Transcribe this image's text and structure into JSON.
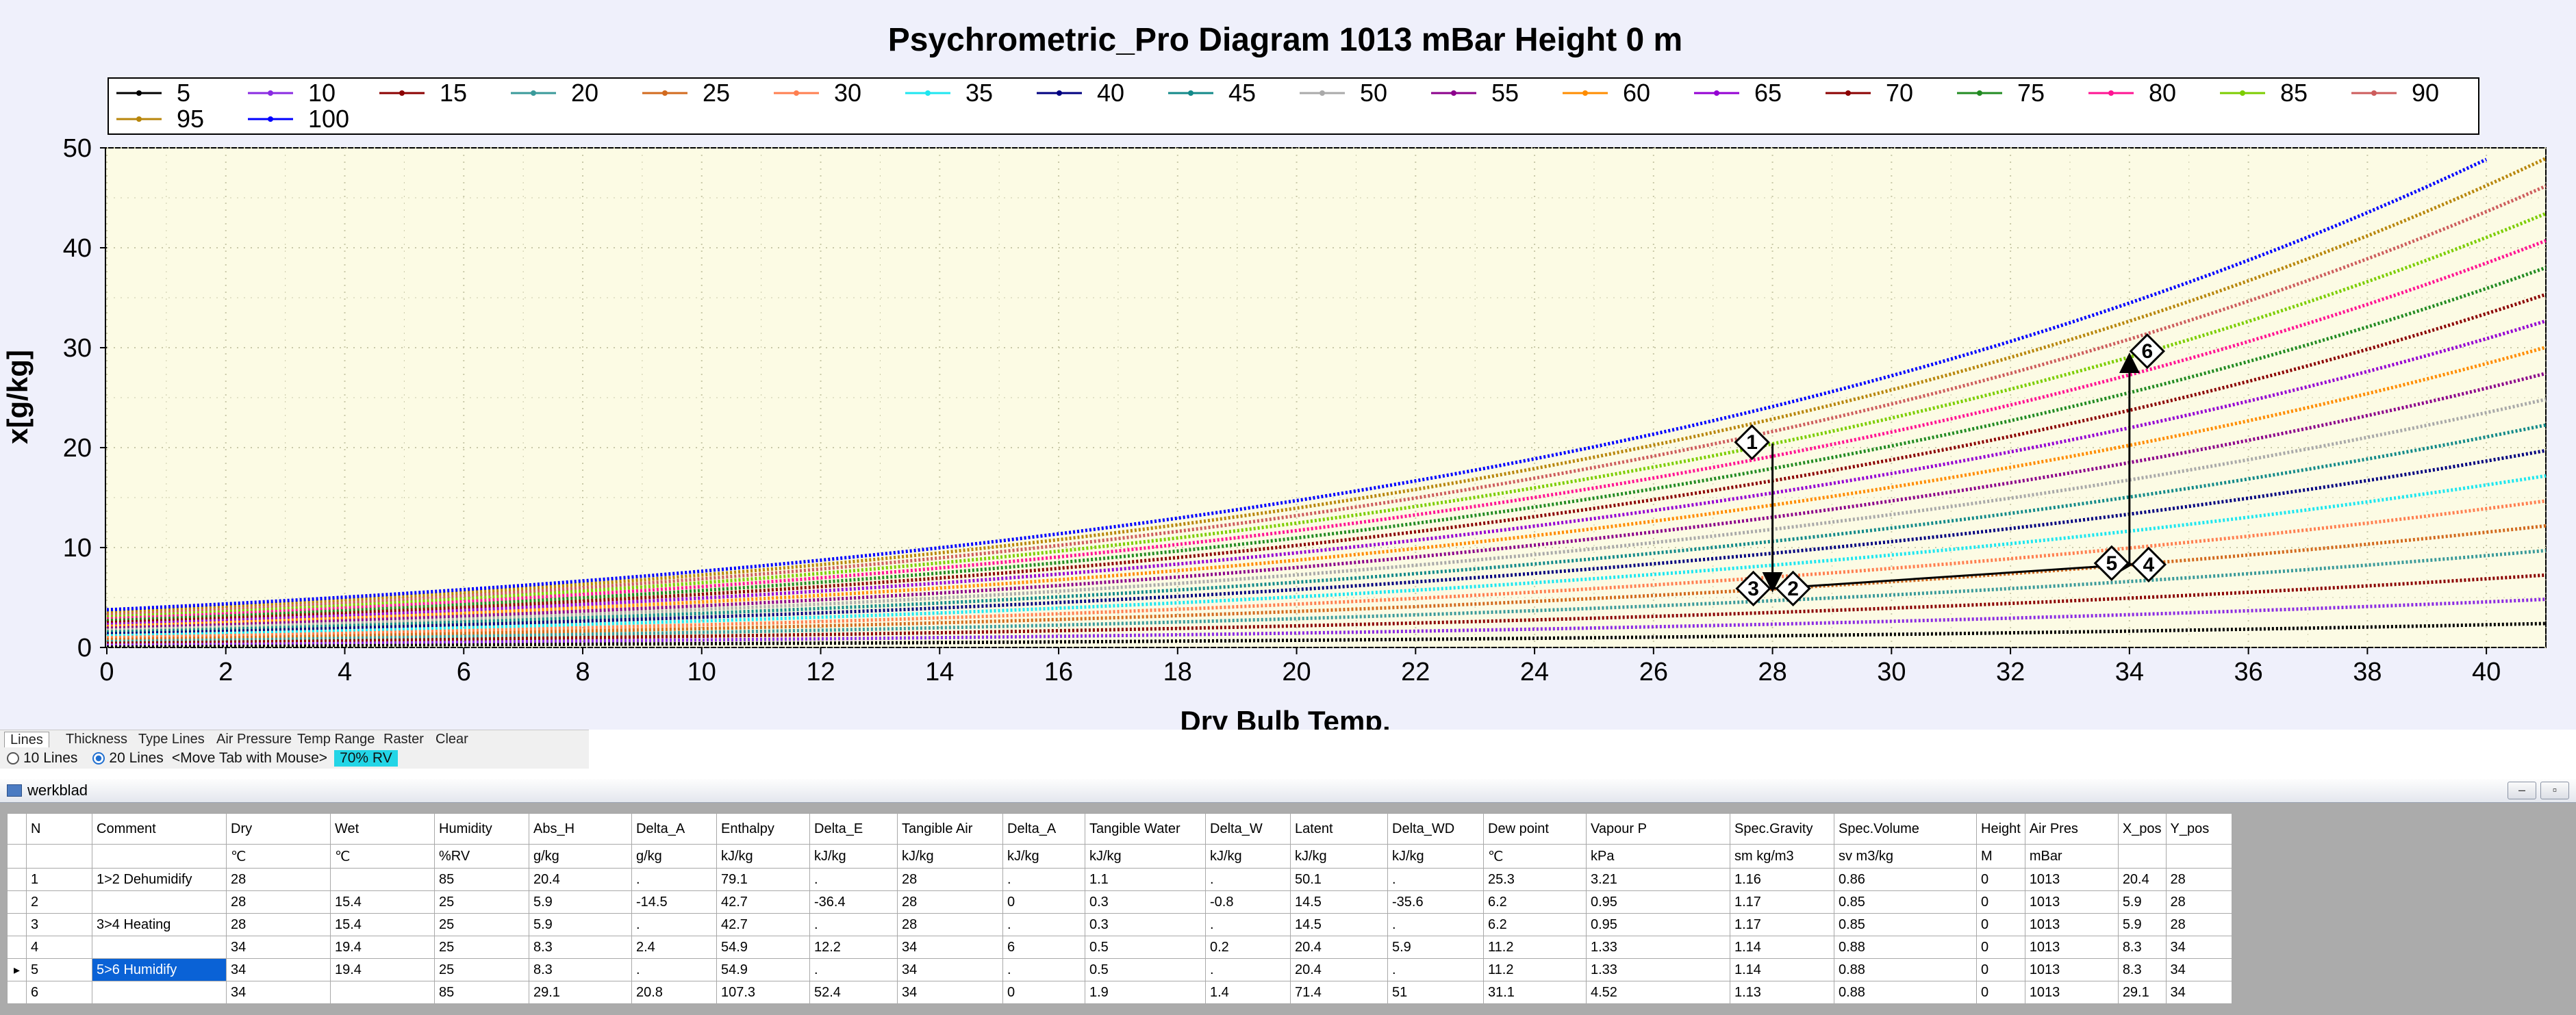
{
  "chart_data": {
    "type": "line",
    "title": "Psychrometric_Pro Diagram  1013 mBar    Height 0 m",
    "xlabel": "Dry Bulb Temp.",
    "ylabel": "x[g/kg]",
    "xlim": [
      0,
      41
    ],
    "ylim": [
      0,
      50
    ],
    "x_ticks": [
      "0",
      "2",
      "4",
      "6",
      "8",
      "10",
      "12",
      "14",
      "16",
      "18",
      "20",
      "22",
      "24",
      "26",
      "28",
      "30",
      "32",
      "34",
      "36",
      "38",
      "40"
    ],
    "y_ticks": [
      "0",
      "10",
      "20",
      "30",
      "40",
      "50"
    ],
    "grid": true,
    "legend_position": "top",
    "series": [
      {
        "name": "5",
        "color": "#000000"
      },
      {
        "name": "10",
        "color": "#8a2be2"
      },
      {
        "name": "15",
        "color": "#8b0000"
      },
      {
        "name": "20",
        "color": "#3a9a9a"
      },
      {
        "name": "25",
        "color": "#d26a1e"
      },
      {
        "name": "30",
        "color": "#ff7f50"
      },
      {
        "name": "35",
        "color": "#1ee6f0"
      },
      {
        "name": "40",
        "color": "#000080"
      },
      {
        "name": "45",
        "color": "#138a8a"
      },
      {
        "name": "50",
        "color": "#a9a9a9"
      },
      {
        "name": "55",
        "color": "#8b008b"
      },
      {
        "name": "60",
        "color": "#ff8c00"
      },
      {
        "name": "65",
        "color": "#9400d3"
      },
      {
        "name": "70",
        "color": "#8b0000"
      },
      {
        "name": "75",
        "color": "#228b22"
      },
      {
        "name": "80",
        "color": "#ff1493"
      },
      {
        "name": "85",
        "color": "#7ccd00"
      },
      {
        "name": "90",
        "color": "#cd5c5c"
      },
      {
        "name": "95",
        "color": "#b8860b"
      },
      {
        "name": "100",
        "color": "#0000ff"
      }
    ],
    "state_points": [
      {
        "id": "1",
        "x": 28,
        "y": 20.4
      },
      {
        "id": "2",
        "x": 28,
        "y": 5.9
      },
      {
        "id": "3",
        "x": 28,
        "y": 5.9
      },
      {
        "id": "4",
        "x": 34,
        "y": 8.3
      },
      {
        "id": "5",
        "x": 34,
        "y": 8.3
      },
      {
        "id": "6",
        "x": 34,
        "y": 29.1
      }
    ],
    "arrows": [
      {
        "from": "1",
        "to": "2"
      },
      {
        "from": "3",
        "to": "4"
      },
      {
        "from": "5",
        "to": "6"
      }
    ]
  },
  "tabs": {
    "items": [
      "Lines",
      "Thickness",
      "Type Lines",
      "Air Pressure",
      "Temp Range",
      "Raster",
      "Clear"
    ],
    "option_10": "10 Lines",
    "option_20": "20 Lines",
    "hint": "<Move Tab with Mouse>",
    "badge": "70% RV"
  },
  "grid": {
    "window_title": "werkblad",
    "columns": [
      "N",
      "Comment",
      "Dry",
      "Wet",
      "Humidity",
      "Abs_H",
      "Delta_A",
      "Enthalpy",
      "Delta_E",
      "Tangible Air",
      "Delta_A",
      "Tangible Water",
      "Delta_W",
      "Latent",
      "Delta_WD",
      "Dew point",
      "Vapour P",
      "Spec.Gravity",
      "Spec.Volume",
      "Height",
      "Air Pres",
      "X_pos",
      "Y_pos"
    ],
    "units": [
      "",
      "",
      "℃",
      "℃",
      "%RV",
      "g/kg",
      "g/kg",
      "kJ/kg",
      "kJ/kg",
      "kJ/kg",
      "kJ/kg",
      "kJ/kg",
      "kJ/kg",
      "kJ/kg",
      "kJ/kg",
      "℃",
      "kPa",
      "sm kg/m3",
      "sv m3/kg",
      "M",
      "mBar",
      "",
      ""
    ],
    "rows": [
      [
        "1",
        "1>2 Dehumidify",
        "28",
        "",
        "85",
        "20.4",
        ".",
        "79.1",
        ".",
        "28",
        ".",
        "1.1",
        ".",
        "50.1",
        ".",
        "25.3",
        "3.21",
        "1.16",
        "0.86",
        "0",
        "1013",
        "20.4",
        "28"
      ],
      [
        "2",
        "",
        "28",
        "15.4",
        "25",
        "5.9",
        "-14.5",
        "42.7",
        "-36.4",
        "28",
        "0",
        "0.3",
        "-0.8",
        "14.5",
        "-35.6",
        "6.2",
        "0.95",
        "1.17",
        "0.85",
        "0",
        "1013",
        "5.9",
        "28"
      ],
      [
        "3",
        "3>4 Heating",
        "28",
        "15.4",
        "25",
        "5.9",
        ".",
        "42.7",
        ".",
        "28",
        ".",
        "0.3",
        ".",
        "14.5",
        ".",
        "6.2",
        "0.95",
        "1.17",
        "0.85",
        "0",
        "1013",
        "5.9",
        "28"
      ],
      [
        "4",
        "",
        "34",
        "19.4",
        "25",
        "8.3",
        "2.4",
        "54.9",
        "12.2",
        "34",
        "6",
        "0.5",
        "0.2",
        "20.4",
        "5.9",
        "11.2",
        "1.33",
        "1.14",
        "0.88",
        "0",
        "1013",
        "8.3",
        "34"
      ],
      [
        "5",
        "5>6 Humidify",
        "34",
        "19.4",
        "25",
        "8.3",
        ".",
        "54.9",
        ".",
        "34",
        ".",
        "0.5",
        ".",
        "20.4",
        ".",
        "11.2",
        "1.33",
        "1.14",
        "0.88",
        "0",
        "1013",
        "8.3",
        "34"
      ],
      [
        "6",
        "",
        "34",
        "",
        "85",
        "29.1",
        "20.8",
        "107.3",
        "52.4",
        "34",
        "0",
        "1.9",
        "1.4",
        "71.4",
        "51",
        "31.1",
        "4.52",
        "1.13",
        "0.88",
        "0",
        "1013",
        "29.1",
        "34"
      ]
    ],
    "selected_row": 4
  }
}
